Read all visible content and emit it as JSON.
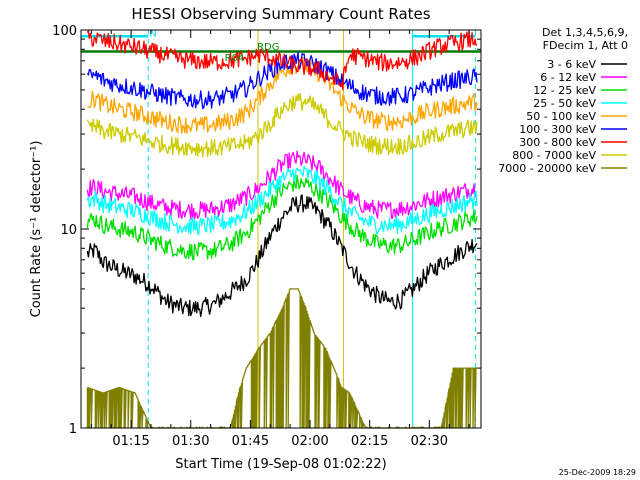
{
  "chart_data": {
    "type": "line",
    "title": "HESSI Observing Summary Count Rates",
    "xlabel": "Start Time (19-Sep-08 01:02:22)",
    "ylabel": "Count Rate (s⁻¹ detector⁻¹)",
    "y_scale": "log",
    "ylim": [
      1,
      100
    ],
    "y_ticks": [
      {
        "value": 1,
        "label": "1"
      },
      {
        "value": 10,
        "label": "10"
      },
      {
        "value": 100,
        "label": "100"
      }
    ],
    "x_ticks": [
      {
        "minute": 75,
        "label": "01:15"
      },
      {
        "minute": 90,
        "label": "01:30"
      },
      {
        "minute": 105,
        "label": "01:45"
      },
      {
        "minute": 120,
        "label": "02:00"
      },
      {
        "minute": 135,
        "label": "02:15"
      },
      {
        "minute": 150,
        "label": "02:30"
      }
    ],
    "xlim_minutes": [
      62.4,
      163
    ],
    "legend_header": [
      "Det 1,3,4,5,6,9,",
      "FDecim 1, Att 0"
    ],
    "legend_placement": "right",
    "annotations": [
      {
        "text": "N",
        "minute": 80.5,
        "y": 97,
        "color": "#00e5ee"
      },
      {
        "text": "RDG",
        "minute": 109.5,
        "y": 83,
        "color": "#008800"
      },
      {
        "text": "R04",
        "minute": 101,
        "y": 73,
        "color": "#008800"
      }
    ],
    "attenuator_level": {
      "value": 78,
      "color": "#007a00"
    },
    "vertical_lines": [
      {
        "minute": 62.4,
        "color": "#00e5ee",
        "style": "solid"
      },
      {
        "minute": 79.3,
        "color": "#00e5ee",
        "style": "dashed"
      },
      {
        "minute": 145.8,
        "color": "#00e5ee",
        "style": "solid"
      },
      {
        "minute": 161.6,
        "color": "#00e5ee",
        "style": "dashed"
      },
      {
        "minute": 106.9,
        "color": "#d4c200",
        "style": "solid"
      },
      {
        "minute": 128.4,
        "color": "#d4c200",
        "style": "solid"
      }
    ],
    "n_bar": {
      "minute_start": 62.4,
      "minute_end": 79.3,
      "y": 93,
      "color": "#00e5ee"
    },
    "n_bar2": {
      "minute_start": 145.8,
      "minute_end": 161.6,
      "y": 93,
      "color": "#00e5ee"
    },
    "series": [
      {
        "name": "3 - 6 keV",
        "color": "#000000",
        "points": [
          [
            64,
            7.5
          ],
          [
            66,
            7.8
          ],
          [
            68,
            6.8
          ],
          [
            72,
            6.2
          ],
          [
            76,
            5.8
          ],
          [
            80,
            5.2
          ],
          [
            84,
            4.3
          ],
          [
            88,
            4.0
          ],
          [
            92,
            4.0
          ],
          [
            96,
            4.2
          ],
          [
            100,
            4.8
          ],
          [
            104,
            5.6
          ],
          [
            107,
            7.0
          ],
          [
            110,
            9.2
          ],
          [
            113,
            11.5
          ],
          [
            116,
            13.3
          ],
          [
            119,
            13.5
          ],
          [
            122,
            12.2
          ],
          [
            125,
            10.2
          ],
          [
            128,
            8.0
          ],
          [
            131,
            6.2
          ],
          [
            134,
            5.2
          ],
          [
            137,
            4.6
          ],
          [
            140,
            4.3
          ],
          [
            143,
            4.4
          ],
          [
            146,
            5.0
          ],
          [
            149,
            5.8
          ],
          [
            152,
            6.5
          ],
          [
            156,
            7.3
          ],
          [
            160,
            8.2
          ],
          [
            162,
            8.6
          ]
        ]
      },
      {
        "name": "6 - 12 keV",
        "color": "#ff00ff",
        "points": [
          [
            64,
            16.0
          ],
          [
            66,
            16.2
          ],
          [
            68,
            15.5
          ],
          [
            72,
            15.0
          ],
          [
            76,
            14.5
          ],
          [
            80,
            13.5
          ],
          [
            84,
            12.8
          ],
          [
            88,
            12.5
          ],
          [
            92,
            12.4
          ],
          [
            96,
            12.6
          ],
          [
            100,
            13.2
          ],
          [
            104,
            14.5
          ],
          [
            107,
            16.0
          ],
          [
            110,
            18.5
          ],
          [
            113,
            21.0
          ],
          [
            116,
            22.5
          ],
          [
            119,
            22.0
          ],
          [
            122,
            20.5
          ],
          [
            125,
            18.0
          ],
          [
            128,
            15.5
          ],
          [
            131,
            14.0
          ],
          [
            134,
            13.0
          ],
          [
            137,
            12.5
          ],
          [
            140,
            12.5
          ],
          [
            143,
            12.7
          ],
          [
            146,
            13.2
          ],
          [
            149,
            13.8
          ],
          [
            152,
            14.3
          ],
          [
            156,
            15.0
          ],
          [
            160,
            15.8
          ],
          [
            162,
            16.2
          ]
        ]
      },
      {
        "name": "12 - 25 keV",
        "color": "#00dd00",
        "points": [
          [
            64,
            11.0
          ],
          [
            66,
            11.2
          ],
          [
            68,
            10.5
          ],
          [
            72,
            10.0
          ],
          [
            76,
            9.6
          ],
          [
            80,
            8.8
          ],
          [
            84,
            8.2
          ],
          [
            88,
            7.8
          ],
          [
            92,
            7.7
          ],
          [
            96,
            7.8
          ],
          [
            100,
            8.4
          ],
          [
            104,
            9.6
          ],
          [
            107,
            11.2
          ],
          [
            110,
            13.5
          ],
          [
            113,
            15.6
          ],
          [
            116,
            17.0
          ],
          [
            119,
            16.8
          ],
          [
            122,
            15.5
          ],
          [
            125,
            13.6
          ],
          [
            128,
            11.5
          ],
          [
            131,
            10.0
          ],
          [
            134,
            9.0
          ],
          [
            137,
            8.4
          ],
          [
            140,
            8.2
          ],
          [
            143,
            8.3
          ],
          [
            146,
            8.8
          ],
          [
            149,
            9.4
          ],
          [
            152,
            10.0
          ],
          [
            156,
            10.6
          ],
          [
            160,
            11.3
          ],
          [
            162,
            11.6
          ]
        ]
      },
      {
        "name": "25 - 50 keV",
        "color": "#00ffff",
        "points": [
          [
            64,
            14.0
          ],
          [
            66,
            14.2
          ],
          [
            68,
            13.4
          ],
          [
            72,
            12.8
          ],
          [
            76,
            12.3
          ],
          [
            80,
            11.5
          ],
          [
            84,
            10.8
          ],
          [
            88,
            10.4
          ],
          [
            92,
            10.3
          ],
          [
            96,
            10.5
          ],
          [
            100,
            11.0
          ],
          [
            104,
            12.2
          ],
          [
            107,
            13.8
          ],
          [
            110,
            15.8
          ],
          [
            113,
            17.8
          ],
          [
            116,
            19.2
          ],
          [
            119,
            19.0
          ],
          [
            122,
            17.6
          ],
          [
            125,
            15.5
          ],
          [
            128,
            13.2
          ],
          [
            131,
            11.8
          ],
          [
            134,
            10.9
          ],
          [
            137,
            10.5
          ],
          [
            140,
            10.4
          ],
          [
            143,
            10.6
          ],
          [
            146,
            11.1
          ],
          [
            149,
            11.7
          ],
          [
            152,
            12.3
          ],
          [
            156,
            13.0
          ],
          [
            160,
            13.8
          ],
          [
            162,
            14.2
          ]
        ]
      },
      {
        "name": "50 - 100 keV",
        "color": "#ffa500",
        "points": [
          [
            64,
            44.0
          ],
          [
            66,
            45.0
          ],
          [
            68,
            42.5
          ],
          [
            72,
            40.0
          ],
          [
            76,
            38.5
          ],
          [
            80,
            36.5
          ],
          [
            84,
            34.5
          ],
          [
            88,
            33.5
          ],
          [
            92,
            33.0
          ],
          [
            96,
            33.5
          ],
          [
            100,
            35.0
          ],
          [
            104,
            38.5
          ],
          [
            107,
            45.0
          ],
          [
            110,
            54.0
          ],
          [
            113,
            62.0
          ],
          [
            116,
            67.0
          ],
          [
            119,
            66.0
          ],
          [
            122,
            61.0
          ],
          [
            125,
            53.0
          ],
          [
            128,
            45.0
          ],
          [
            131,
            39.5
          ],
          [
            134,
            36.5
          ],
          [
            137,
            35.0
          ],
          [
            140,
            34.5
          ],
          [
            143,
            35.0
          ],
          [
            146,
            36.5
          ],
          [
            149,
            38.5
          ],
          [
            152,
            40.0
          ],
          [
            156,
            41.5
          ],
          [
            160,
            43.0
          ],
          [
            162,
            44.0
          ]
        ]
      },
      {
        "name": "100 - 300 keV",
        "color": "#0000ff",
        "points": [
          [
            64,
            58.0
          ],
          [
            66,
            59.0
          ],
          [
            68,
            56.0
          ],
          [
            72,
            53.0
          ],
          [
            76,
            51.0
          ],
          [
            80,
            48.5
          ],
          [
            84,
            46.5
          ],
          [
            88,
            45.0
          ],
          [
            92,
            44.5
          ],
          [
            96,
            45.0
          ],
          [
            100,
            47.0
          ],
          [
            104,
            51.0
          ],
          [
            107,
            57.0
          ],
          [
            110,
            63.0
          ],
          [
            113,
            68.0
          ],
          [
            116,
            70.0
          ],
          [
            119,
            69.0
          ],
          [
            122,
            66.0
          ],
          [
            125,
            61.0
          ],
          [
            128,
            55.0
          ],
          [
            131,
            51.0
          ],
          [
            134,
            48.0
          ],
          [
            137,
            46.5
          ],
          [
            140,
            46.0
          ],
          [
            143,
            46.5
          ],
          [
            146,
            48.0
          ],
          [
            149,
            50.5
          ],
          [
            152,
            53.0
          ],
          [
            156,
            55.5
          ],
          [
            160,
            57.5
          ],
          [
            162,
            58.5
          ]
        ]
      },
      {
        "name": "300 - 800 keV",
        "color": "#ff0000",
        "points": [
          [
            64,
            90.0
          ],
          [
            66,
            91.0
          ],
          [
            68,
            88.0
          ],
          [
            72,
            85.0
          ],
          [
            76,
            82.0
          ],
          [
            80,
            78.0
          ],
          [
            84,
            74.0
          ],
          [
            88,
            71.0
          ],
          [
            92,
            69.5
          ],
          [
            96,
            69.0
          ],
          [
            100,
            70.0
          ],
          [
            104,
            72.0
          ],
          [
            107,
            75.0
          ],
          [
            110,
            73.0
          ],
          [
            113,
            69.0
          ],
          [
            116,
            66.0
          ],
          [
            119,
            65.0
          ],
          [
            122,
            63.0
          ],
          [
            125,
            58.0
          ],
          [
            128,
            53.0
          ],
          [
            130,
            75.0
          ],
          [
            134,
            72.0
          ],
          [
            137,
            69.0
          ],
          [
            140,
            68.0
          ],
          [
            143,
            69.0
          ],
          [
            146,
            72.0
          ],
          [
            149,
            77.0
          ],
          [
            152,
            82.0
          ],
          [
            156,
            86.0
          ],
          [
            160,
            89.0
          ],
          [
            162,
            90.0
          ]
        ]
      },
      {
        "name": "800 - 7000 keV",
        "color": "#cccc00",
        "points": [
          [
            64,
            32.0
          ],
          [
            66,
            32.5
          ],
          [
            68,
            31.0
          ],
          [
            72,
            30.0
          ],
          [
            76,
            29.0
          ],
          [
            80,
            27.5
          ],
          [
            84,
            26.5
          ],
          [
            88,
            26.0
          ],
          [
            92,
            25.5
          ],
          [
            96,
            25.5
          ],
          [
            100,
            26.0
          ],
          [
            104,
            27.0
          ],
          [
            107,
            29.5
          ],
          [
            110,
            34.0
          ],
          [
            113,
            40.0
          ],
          [
            116,
            44.0
          ],
          [
            119,
            43.5
          ],
          [
            122,
            40.0
          ],
          [
            125,
            35.0
          ],
          [
            128,
            31.0
          ],
          [
            131,
            28.5
          ],
          [
            134,
            27.0
          ],
          [
            137,
            26.3
          ],
          [
            140,
            26.0
          ],
          [
            143,
            26.2
          ],
          [
            146,
            27.0
          ],
          [
            149,
            28.3
          ],
          [
            152,
            29.8
          ],
          [
            156,
            31.0
          ],
          [
            160,
            32.0
          ],
          [
            162,
            32.5
          ]
        ]
      },
      {
        "name": "7000 - 20000 keV",
        "color": "#808000",
        "points": [
          [
            64,
            1.6
          ],
          [
            68,
            1.5
          ],
          [
            72,
            1.6
          ],
          [
            76,
            1.5
          ],
          [
            80,
            1.0
          ],
          [
            84,
            1.0
          ],
          [
            88,
            1.0
          ],
          [
            92,
            1.0
          ],
          [
            96,
            1.0
          ],
          [
            100,
            1.0
          ],
          [
            102,
            1.5
          ],
          [
            104,
            2.0
          ],
          [
            107,
            2.5
          ],
          [
            110,
            3.0
          ],
          [
            113,
            4.0
          ],
          [
            115,
            5.0
          ],
          [
            117,
            5.0
          ],
          [
            119,
            4.0
          ],
          [
            121,
            3.0
          ],
          [
            124,
            2.5
          ],
          [
            126,
            2.0
          ],
          [
            128,
            1.6
          ],
          [
            130,
            1.5
          ],
          [
            134,
            1.0
          ],
          [
            138,
            1.0
          ],
          [
            142,
            1.0
          ],
          [
            146,
            1.0
          ],
          [
            150,
            1.0
          ],
          [
            153,
            1.0
          ],
          [
            156,
            2.0
          ],
          [
            160,
            2.0
          ],
          [
            162,
            2.0
          ]
        ]
      }
    ]
  },
  "timestamp": "25-Dec-2009 18:29"
}
